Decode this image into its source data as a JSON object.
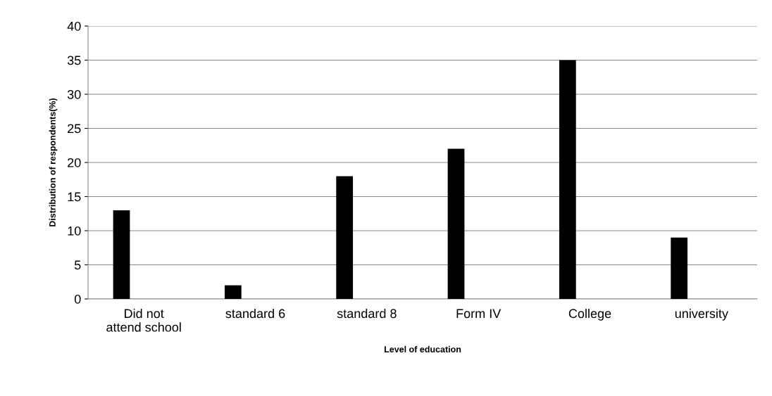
{
  "chart_data": {
    "type": "bar",
    "xlabel": "Level of education",
    "ylabel": "Distribution of respondents(%)",
    "categories": [
      "Did not\nattend school",
      "standard 6",
      "standard 8",
      "Form IV",
      "College",
      "university"
    ],
    "values": [
      13,
      2,
      18,
      22,
      35,
      9
    ],
    "color": "#000000",
    "ylim": [
      0,
      40
    ],
    "yticks": [
      0,
      5,
      10,
      15,
      20,
      25,
      30,
      35,
      40
    ],
    "grid": "y"
  }
}
